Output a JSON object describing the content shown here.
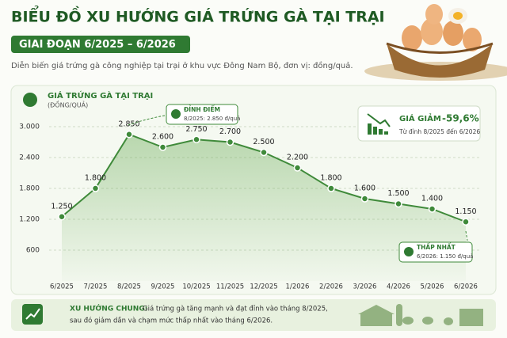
{
  "chart_data": {
    "type": "line",
    "title": "BIỂU ĐỒ XU HƯỚNG GIÁ TRỨNG GÀ TẠI TRẠI",
    "subtitle": "GIAI ĐOẠN 6/2025 – 6/2026",
    "description": "Diễn biến giá trứng gà công nghiệp tại trại ở khu vực Đông Nam Bộ, đơn vị: đồng/quả.",
    "chart_title": "GIÁ TRỨNG GÀ TẠI TRẠI",
    "y_label": "(ĐỒNG/QUẢ)",
    "categories": [
      "6/2025",
      "7/2025",
      "8/2025",
      "9/2025",
      "10/2025",
      "11/2025",
      "12/2025",
      "1/2026",
      "2/2026",
      "3/2026",
      "4/2026",
      "5/2026",
      "6/2026"
    ],
    "values": [
      1250,
      1800,
      2850,
      2600,
      2750,
      2700,
      2500,
      2200,
      1800,
      1600,
      1500,
      1400,
      1150
    ],
    "value_labels": [
      "1.250",
      "1.800",
      "2.850",
      "2.600",
      "2.750",
      "2.700",
      "2.500",
      "2.200",
      "1.800",
      "1.600",
      "1.500",
      "1.400",
      "1.150"
    ],
    "color": "#3f8a3a",
    "ylim": [
      0,
      3000
    ],
    "yticks": [
      {
        "value": 600,
        "label": "600"
      },
      {
        "value": 1200,
        "label": "1.200"
      },
      {
        "value": 1800,
        "label": "1.800"
      },
      {
        "value": 2400,
        "label": "2.400"
      },
      {
        "value": 3000,
        "label": "3.000"
      }
    ],
    "grid": true,
    "peak_note": {
      "title": "ĐỈNH ĐIỂM",
      "text": "8/2025: 2.850 đ/quả"
    },
    "low_note": {
      "title": "THẤP NHẤT",
      "text": "6/2026: 1.150 đ/quả"
    },
    "change_note": {
      "label": "GIÁ GIẢM",
      "value": "-59,6%",
      "text": "Từ đỉnh 8/2025 đến 6/2026"
    },
    "trend_title": "XU HƯỚNG CHUNG:",
    "trend_text": [
      "Giá trứng gà tăng mạnh và đạt đỉnh vào tháng 8/2025,",
      "sau đó giảm dần và chạm mức thấp nhất vào tháng 6/2026."
    ]
  }
}
